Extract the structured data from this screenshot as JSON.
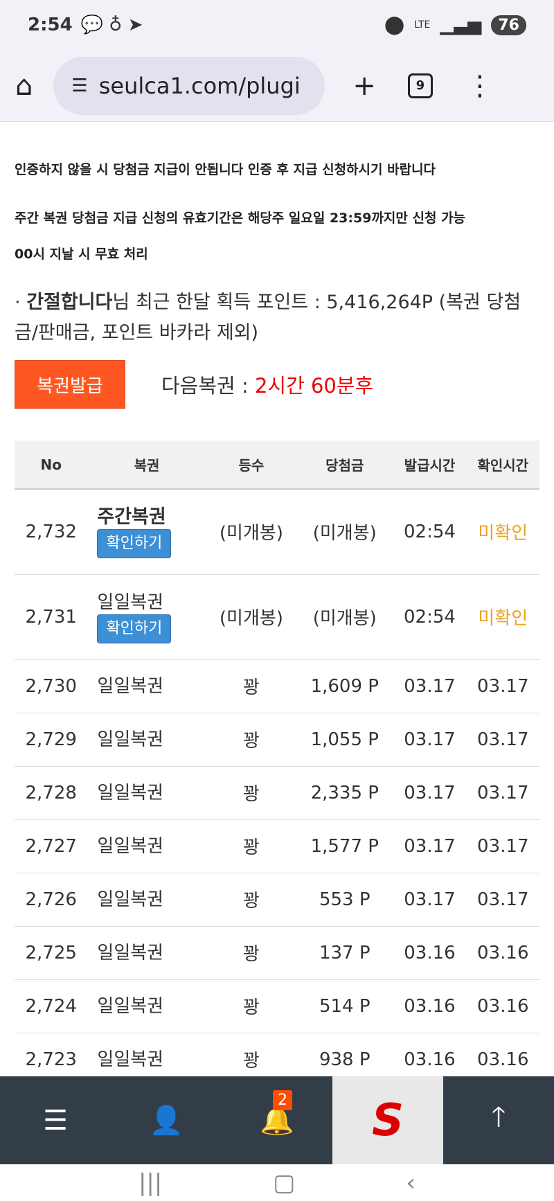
{
  "status": {
    "time": "2:54",
    "network": "LTE",
    "battery": "76"
  },
  "browser": {
    "url": "seulca1.com/plugi",
    "tab_count": "9"
  },
  "notices": [
    "인증하지 않을 시 당첨금 지급이 안됩니다 인증 후 지급 신청하시기 바랍니다",
    "주간 복권 당첨금 지급 신청의 유효기간은 해당주 일요일 23:59까지만 신청 가능",
    "00시 지날 시 무효 처리"
  ],
  "points": {
    "bullet": "·",
    "user": "간절합니다",
    "text": "님 최근 한달 획득 포인트 : 5,416,264P (복권 당첨금/판매금, 포인트 바카라 제외)"
  },
  "issue_button": "복권발급",
  "next_label": "다음복권 : ",
  "next_value": "2시간 60분후",
  "table": {
    "headers": [
      "No",
      "복권",
      "등수",
      "당첨금",
      "발급시간",
      "확인시간"
    ],
    "check_label": "확인하기",
    "rows": [
      {
        "no": "2,732",
        "name": "주간복권",
        "bold": true,
        "check": true,
        "rank": "(미개봉)",
        "prize": "(미개봉)",
        "issued": "02:54",
        "confirmed": "미확인"
      },
      {
        "no": "2,731",
        "name": "일일복권",
        "check": true,
        "rank": "(미개봉)",
        "prize": "(미개봉)",
        "issued": "02:54",
        "confirmed": "미확인"
      },
      {
        "no": "2,730",
        "name": "일일복권",
        "rank": "꽝",
        "prize": "1,609 P",
        "issued": "03.17",
        "confirmed": "03.17"
      },
      {
        "no": "2,729",
        "name": "일일복권",
        "rank": "꽝",
        "prize": "1,055 P",
        "issued": "03.17",
        "confirmed": "03.17"
      },
      {
        "no": "2,728",
        "name": "일일복권",
        "rank": "꽝",
        "prize": "2,335 P",
        "issued": "03.17",
        "confirmed": "03.17"
      },
      {
        "no": "2,727",
        "name": "일일복권",
        "rank": "꽝",
        "prize": "1,577 P",
        "issued": "03.17",
        "confirmed": "03.17"
      },
      {
        "no": "2,726",
        "name": "일일복권",
        "rank": "꽝",
        "prize": "553 P",
        "issued": "03.17",
        "confirmed": "03.17"
      },
      {
        "no": "2,725",
        "name": "일일복권",
        "rank": "꽝",
        "prize": "137 P",
        "issued": "03.16",
        "confirmed": "03.16"
      },
      {
        "no": "2,724",
        "name": "일일복권",
        "rank": "꽝",
        "prize": "514 P",
        "issued": "03.16",
        "confirmed": "03.16"
      },
      {
        "no": "2,723",
        "name": "일일복권",
        "rank": "꽝",
        "prize": "938 P",
        "issued": "03.16",
        "confirmed": "03.16"
      }
    ]
  },
  "bottom_nav": {
    "notification_count": "2",
    "logo": "S"
  },
  "colors": {
    "accent": "#ff5722",
    "check": "#3d8fd6",
    "unconfirmed": "#f0a020",
    "countdown": "#e00000",
    "nav": "#333d47"
  }
}
